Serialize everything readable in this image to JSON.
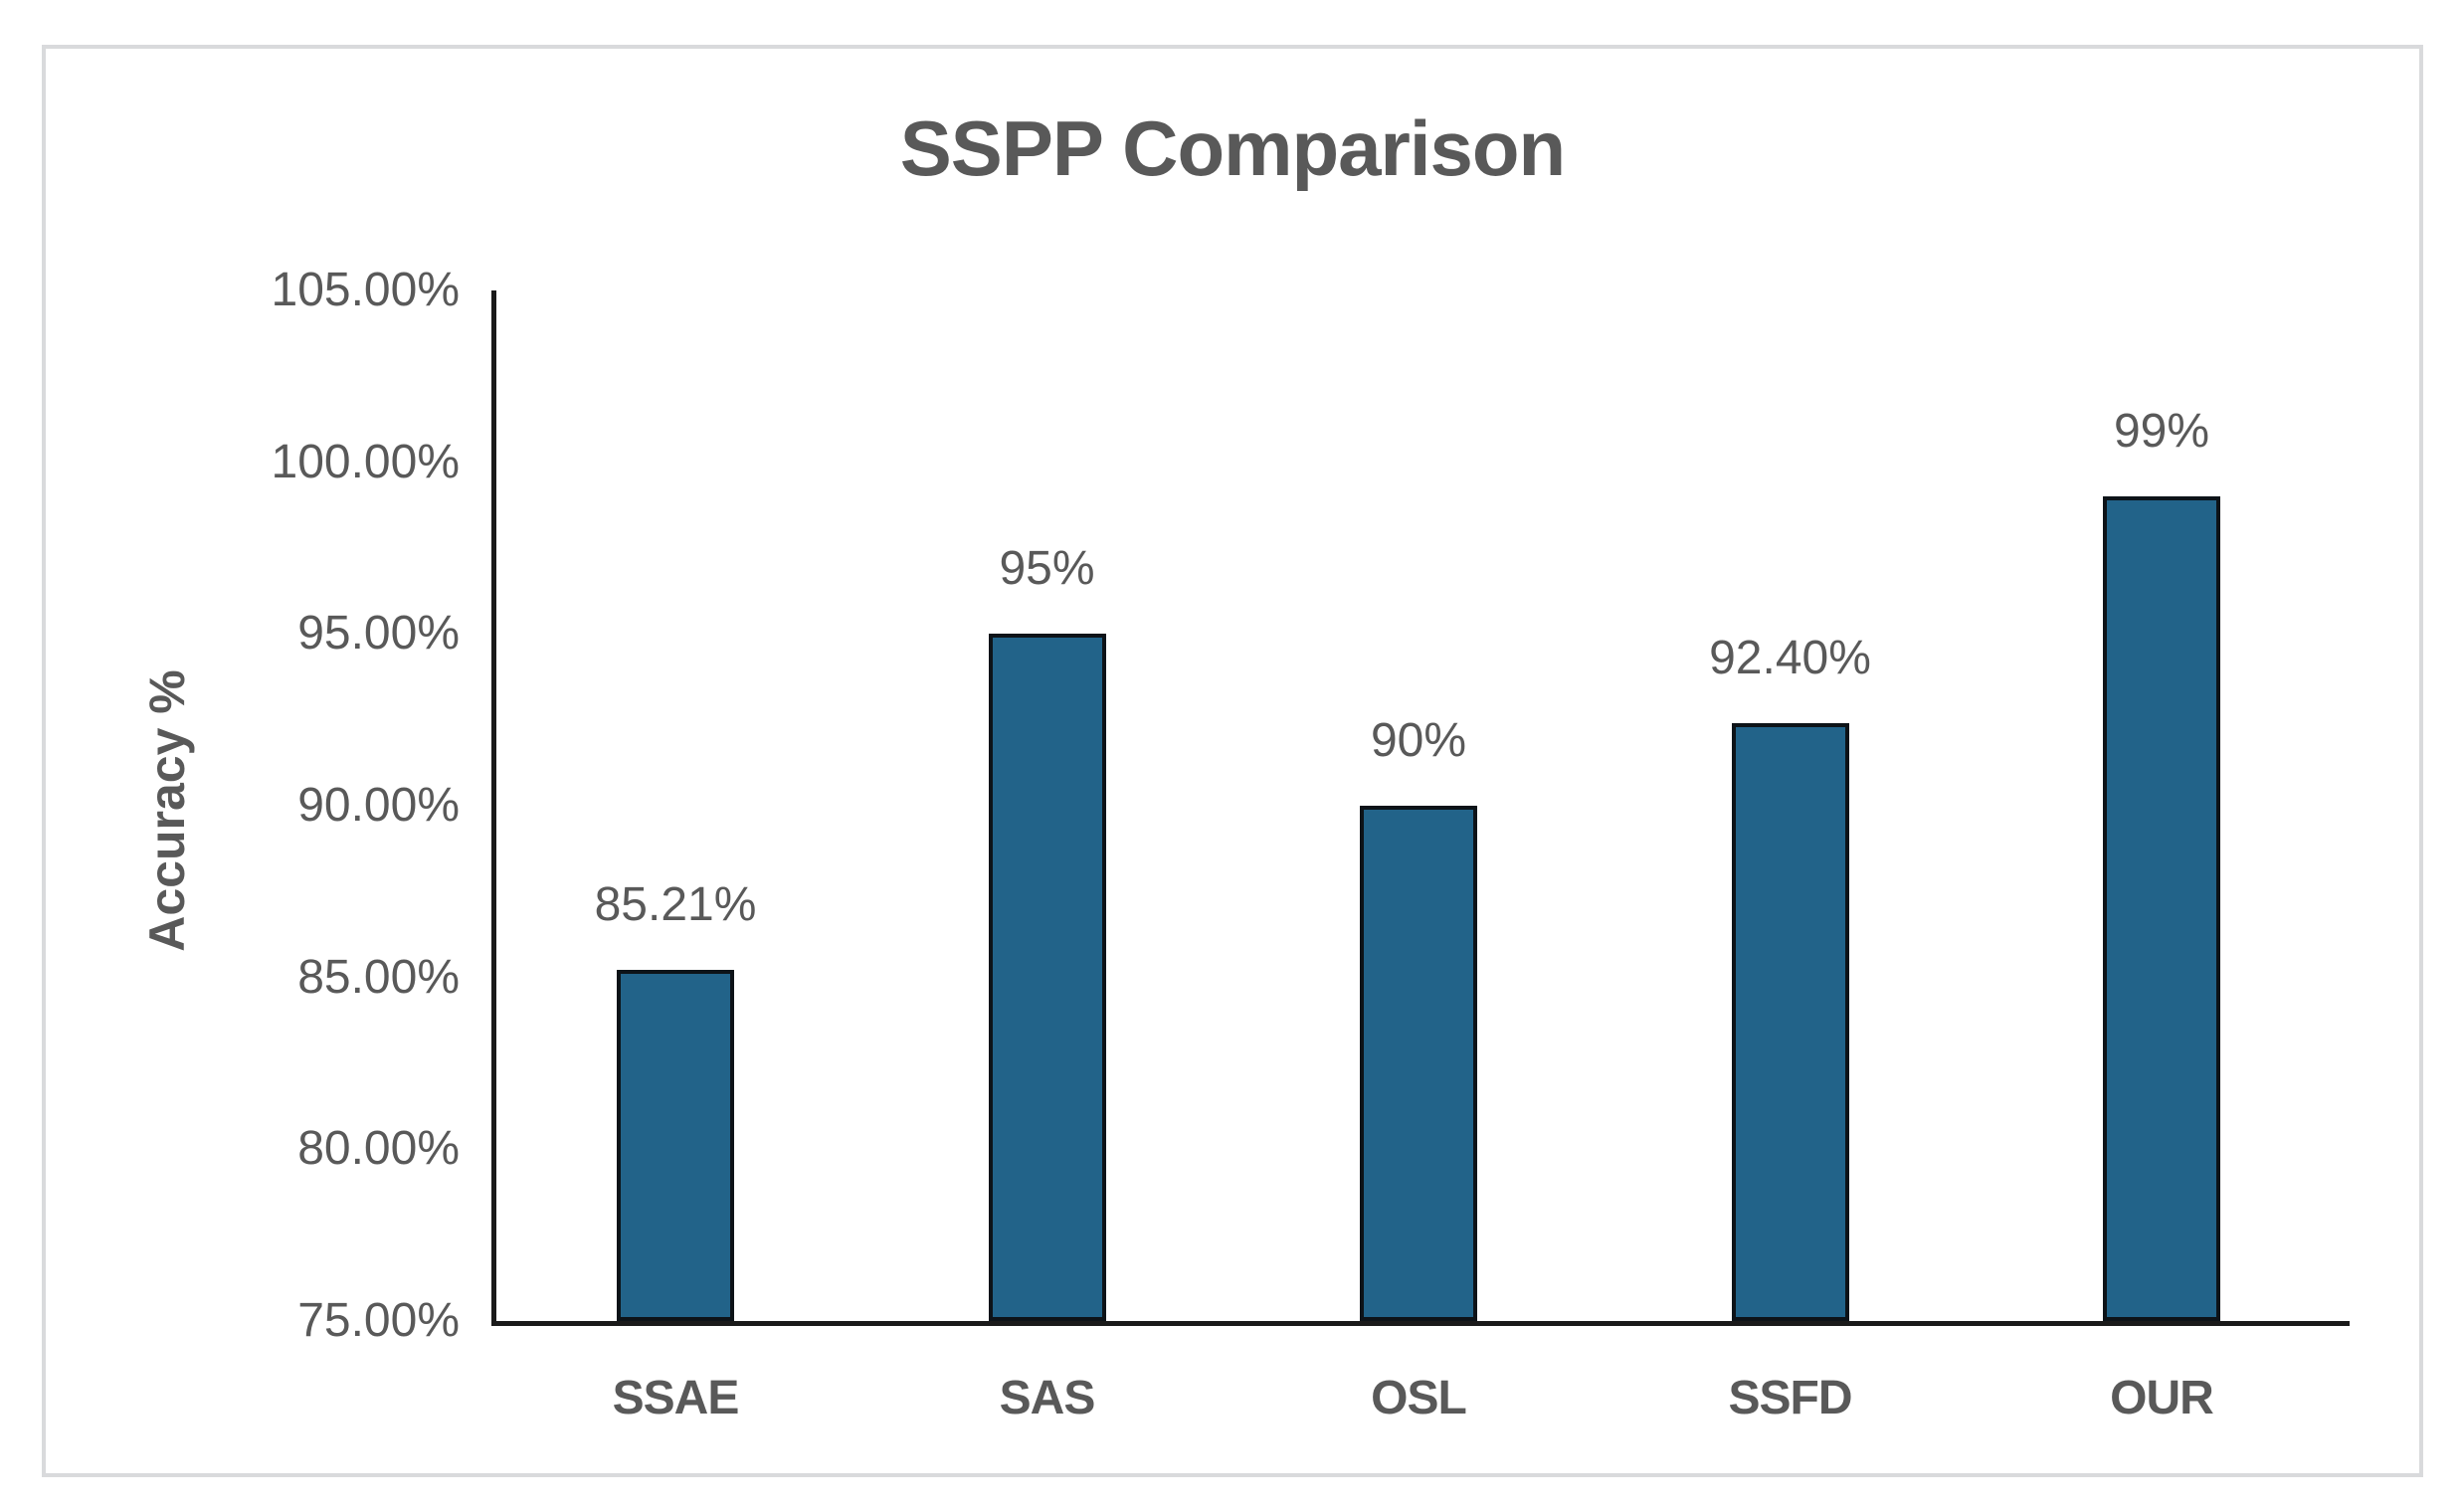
{
  "chart_data": {
    "type": "bar",
    "title": "SSPP Comparison",
    "xlabel": "",
    "ylabel": "Accuracy %",
    "categories": [
      "SSAE",
      "SAS",
      "OSL",
      "SSFD",
      "OUR"
    ],
    "values": [
      85.21,
      95,
      90,
      92.4,
      99
    ],
    "value_labels": [
      "85.21%",
      "95%",
      "90%",
      "92.40%",
      "99%"
    ],
    "y_ticks": [
      "105.00%",
      "100.00%",
      "95.00%",
      "90.00%",
      "85.00%",
      "80.00%",
      "75.00%"
    ],
    "ylim": [
      75,
      105
    ],
    "grid": false,
    "legend_position": "none",
    "colors": {
      "bar_fill": "#226389",
      "bar_border": "#0d1318",
      "axis_line": "#1a1a1a",
      "text": "#595959",
      "frame_border": "#d9dadc",
      "background": "#ffffff"
    }
  }
}
